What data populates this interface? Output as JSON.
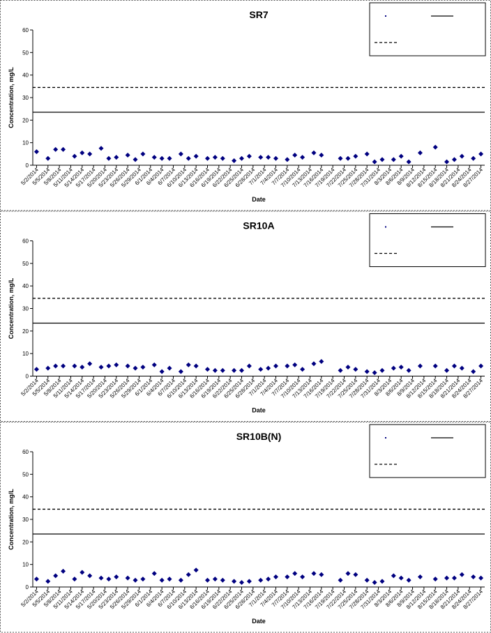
{
  "chart_data": [
    {
      "type": "scatter",
      "title": "SR7",
      "xlabel": "Date",
      "ylabel": "Concentration, mg/L",
      "color": "#000080",
      "x": [
        "5/2/2014",
        "5/5/2014",
        "5/7/2014",
        "5/9/2014",
        "5/12/2014",
        "5/14/2014",
        "5/16/2014",
        "5/19/2014",
        "5/21/2014",
        "5/23/2014",
        "5/26/2014",
        "5/28/2014",
        "5/30/2014",
        "6/2/2014",
        "6/4/2014",
        "6/6/2014",
        "6/9/2014",
        "6/11/2014",
        "6/13/2014",
        "6/16/2014",
        "6/18/2014",
        "6/20/2014",
        "6/23/2014",
        "6/25/2014",
        "6/27/2014",
        "6/30/2014",
        "7/2/2014",
        "7/4/2014",
        "7/7/2014",
        "7/9/2014",
        "7/11/2014",
        "7/14/2014",
        "7/16/2014",
        "7/18/2014",
        "7/21/2014",
        "7/23/2014",
        "7/25/2014",
        "7/28/2014",
        "7/30/2014",
        "8/1/2014",
        "8/4/2014",
        "8/6/2014",
        "8/8/2014",
        "8/11/2014",
        "8/13/2014",
        "8/15/2014",
        "8/18/2014",
        "8/20/2014",
        "8/22/2014",
        "8/25/2014",
        "8/27/2014"
      ],
      "values": [
        6,
        3,
        7,
        7,
        4,
        5.5,
        5,
        7.5,
        3,
        3.5,
        4.5,
        2.5,
        5,
        3.5,
        3,
        3,
        5,
        3,
        4,
        3,
        3.5,
        3,
        2,
        3,
        4,
        3.5,
        3.5,
        3,
        2.5,
        4.5,
        3.5,
        5.5,
        4.5,
        null,
        3,
        3,
        4,
        5,
        1.5,
        2.5,
        2.5,
        4,
        1.5,
        5.5,
        null,
        8,
        1.5,
        2.5,
        4,
        3,
        5
      ],
      "reference_lines": [
        {
          "value": 23.5,
          "style": "solid"
        },
        {
          "value": 34.5,
          "style": "dashed"
        }
      ],
      "xlim": [
        "5/1/2014",
        "8/28/2014"
      ],
      "xticks": [
        "5/2/2014",
        "5/5/2014",
        "5/8/2014",
        "5/11/2014",
        "5/14/2014",
        "5/17/2014",
        "5/20/2014",
        "5/23/2014",
        "5/26/2014",
        "5/29/2014",
        "6/1/2014",
        "6/4/2014",
        "6/7/2014",
        "6/10/2014",
        "6/13/2014",
        "6/16/2014",
        "6/19/2014",
        "6/22/2014",
        "6/25/2014",
        "6/28/2014",
        "7/1/2014",
        "7/4/2014",
        "7/7/2014",
        "7/10/2014",
        "7/13/2014",
        "7/16/2014",
        "7/19/2014",
        "7/22/2014",
        "7/25/2014",
        "7/28/2014",
        "7/31/2014",
        "8/3/2014",
        "8/6/2014",
        "8/9/2014",
        "8/12/2014",
        "8/15/2014",
        "8/18/2014",
        "8/21/2014",
        "8/24/2014",
        "8/27/2014"
      ],
      "ylim": [
        0,
        60
      ],
      "yticks": [
        0,
        10,
        20,
        30,
        40,
        50,
        60
      ]
    },
    {
      "type": "scatter",
      "title": "SR10A",
      "xlabel": "Date",
      "ylabel": "Concentration, mg/L",
      "color": "#000080",
      "x": [
        "5/2/2014",
        "5/5/2014",
        "5/7/2014",
        "5/9/2014",
        "5/12/2014",
        "5/14/2014",
        "5/16/2014",
        "5/19/2014",
        "5/21/2014",
        "5/23/2014",
        "5/26/2014",
        "5/28/2014",
        "5/30/2014",
        "6/2/2014",
        "6/4/2014",
        "6/6/2014",
        "6/9/2014",
        "6/11/2014",
        "6/13/2014",
        "6/16/2014",
        "6/18/2014",
        "6/20/2014",
        "6/23/2014",
        "6/25/2014",
        "6/27/2014",
        "6/30/2014",
        "7/2/2014",
        "7/4/2014",
        "7/7/2014",
        "7/9/2014",
        "7/11/2014",
        "7/14/2014",
        "7/16/2014",
        "7/18/2014",
        "7/21/2014",
        "7/23/2014",
        "7/25/2014",
        "7/28/2014",
        "7/30/2014",
        "8/1/2014",
        "8/4/2014",
        "8/6/2014",
        "8/8/2014",
        "8/11/2014",
        "8/13/2014",
        "8/15/2014",
        "8/18/2014",
        "8/20/2014",
        "8/22/2014",
        "8/25/2014",
        "8/27/2014"
      ],
      "values": [
        3,
        3.5,
        4.5,
        4.5,
        4.5,
        4,
        5.5,
        4,
        4.5,
        5,
        4.5,
        3.5,
        4,
        5,
        2,
        3.5,
        2,
        5,
        4.5,
        3,
        2.5,
        2.5,
        2.5,
        2.5,
        4.5,
        3,
        3.5,
        4.5,
        4.5,
        5,
        3,
        5.5,
        6.5,
        null,
        2.5,
        4,
        3,
        2,
        1.5,
        2.5,
        3.5,
        4,
        2.5,
        4.5,
        null,
        4.5,
        2.5,
        4.5,
        3.5,
        2,
        4.5
      ],
      "reference_lines": [
        {
          "value": 23.5,
          "style": "solid"
        },
        {
          "value": 34.5,
          "style": "dashed"
        }
      ],
      "xlim": [
        "5/1/2014",
        "8/28/2014"
      ],
      "xticks": [
        "5/2/2014",
        "5/5/2014",
        "5/8/2014",
        "5/11/2014",
        "5/14/2014",
        "5/17/2014",
        "5/20/2014",
        "5/23/2014",
        "5/26/2014",
        "5/29/2014",
        "6/1/2014",
        "6/4/2014",
        "6/7/2014",
        "6/10/2014",
        "6/13/2014",
        "6/16/2014",
        "6/19/2014",
        "6/22/2014",
        "6/25/2014",
        "6/28/2014",
        "7/1/2014",
        "7/4/2014",
        "7/7/2014",
        "7/10/2014",
        "7/13/2014",
        "7/16/2014",
        "7/19/2014",
        "7/22/2014",
        "7/25/2014",
        "7/28/2014",
        "7/31/2014",
        "8/3/2014",
        "8/6/2014",
        "8/9/2014",
        "8/12/2014",
        "8/15/2014",
        "8/18/2014",
        "8/21/2014",
        "8/24/2014",
        "8/27/2014"
      ],
      "ylim": [
        0,
        60
      ],
      "yticks": [
        0,
        10,
        20,
        30,
        40,
        50,
        60
      ]
    },
    {
      "type": "scatter",
      "title": "SR10B(N)",
      "xlabel": "Date",
      "ylabel": "Concentration, mg/L",
      "color": "#000080",
      "x": [
        "5/2/2014",
        "5/5/2014",
        "5/7/2014",
        "5/9/2014",
        "5/12/2014",
        "5/14/2014",
        "5/16/2014",
        "5/19/2014",
        "5/21/2014",
        "5/23/2014",
        "5/26/2014",
        "5/28/2014",
        "5/30/2014",
        "6/2/2014",
        "6/4/2014",
        "6/6/2014",
        "6/9/2014",
        "6/11/2014",
        "6/13/2014",
        "6/16/2014",
        "6/18/2014",
        "6/20/2014",
        "6/23/2014",
        "6/25/2014",
        "6/27/2014",
        "6/30/2014",
        "7/2/2014",
        "7/4/2014",
        "7/7/2014",
        "7/9/2014",
        "7/11/2014",
        "7/14/2014",
        "7/16/2014",
        "7/18/2014",
        "7/21/2014",
        "7/23/2014",
        "7/25/2014",
        "7/28/2014",
        "7/30/2014",
        "8/1/2014",
        "8/4/2014",
        "8/6/2014",
        "8/8/2014",
        "8/11/2014",
        "8/13/2014",
        "8/15/2014",
        "8/18/2014",
        "8/20/2014",
        "8/22/2014",
        "8/25/2014",
        "8/27/2014"
      ],
      "values": [
        3.5,
        2.5,
        5,
        7,
        3.5,
        6.5,
        5,
        4,
        3.5,
        4.5,
        4,
        3,
        3.5,
        6,
        3,
        3.5,
        3,
        5.5,
        7.5,
        3,
        3.5,
        3,
        2.5,
        2,
        2.5,
        3,
        3.5,
        4.5,
        4.5,
        6,
        4.5,
        6,
        5.5,
        null,
        3,
        6,
        5.5,
        3,
        2,
        2.5,
        5,
        4,
        3,
        4.5,
        null,
        3.5,
        4,
        4,
        5.5,
        4.5,
        4
      ],
      "reference_lines": [
        {
          "value": 23.5,
          "style": "solid"
        },
        {
          "value": 34.5,
          "style": "dashed"
        }
      ],
      "xlim": [
        "5/1/2014",
        "8/28/2014"
      ],
      "xticks": [
        "5/2/2014",
        "5/5/2014",
        "5/8/2014",
        "5/11/2014",
        "5/14/2014",
        "5/17/2014",
        "5/20/2014",
        "5/23/2014",
        "5/26/2014",
        "5/29/2014",
        "6/1/2014",
        "6/4/2014",
        "6/7/2014",
        "6/10/2014",
        "6/13/2014",
        "6/16/2014",
        "6/19/2014",
        "6/22/2014",
        "6/25/2014",
        "6/28/2014",
        "7/1/2014",
        "7/4/2014",
        "7/7/2014",
        "7/10/2014",
        "7/13/2014",
        "7/16/2014",
        "7/19/2014",
        "7/22/2014",
        "7/25/2014",
        "7/28/2014",
        "7/31/2014",
        "8/3/2014",
        "8/6/2014",
        "8/9/2014",
        "8/12/2014",
        "8/15/2014",
        "8/18/2014",
        "8/21/2014",
        "8/24/2014",
        "8/27/2014"
      ],
      "ylim": [
        0,
        60
      ],
      "yticks": [
        0,
        10,
        20,
        30,
        40,
        50,
        60
      ]
    }
  ]
}
